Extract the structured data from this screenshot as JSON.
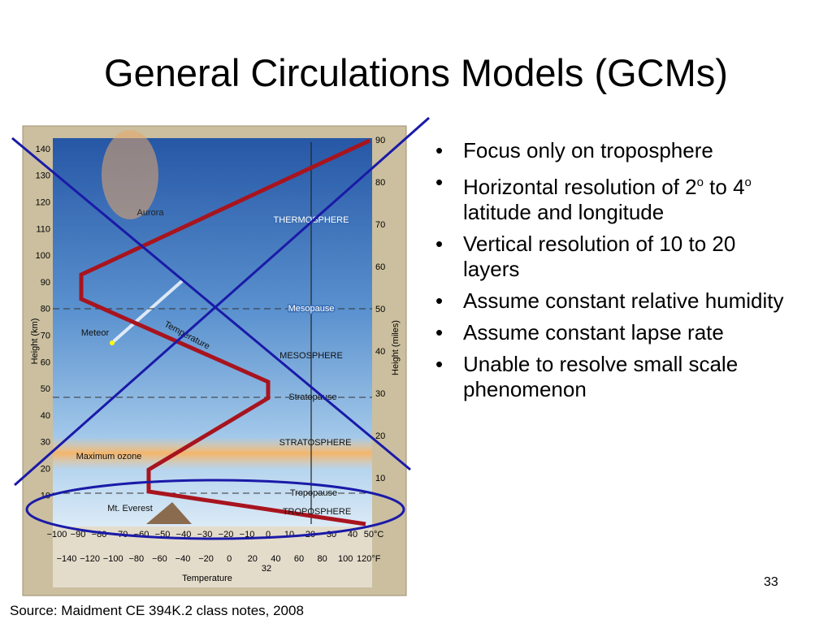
{
  "slide": {
    "title": "General Circulations Models (GCMs)",
    "figure": {
      "km_ticks": [
        "140",
        "130",
        "120",
        "110",
        "100",
        "90",
        "80",
        "70",
        "60",
        "50",
        "40",
        "30",
        "20",
        "10"
      ],
      "mile_ticks": [
        "90",
        "80",
        "70",
        "60",
        "50",
        "40",
        "30",
        "20",
        "10"
      ],
      "celsius_ticks": [
        "−100",
        "−90",
        "−80",
        "−70",
        "−60",
        "−50",
        "−40",
        "−30",
        "−20",
        "−10",
        "0",
        "10",
        "20",
        "30",
        "40",
        "50°C"
      ],
      "fahrenheit_ticks": [
        "−140",
        "−120",
        "−100",
        "−80",
        "−60",
        "−40",
        "−20",
        "0",
        "20",
        "40",
        "60",
        "80",
        "100",
        "120°F"
      ],
      "freezing_label": "32",
      "x_axis_label": "Temperature",
      "y_axis_label": "Height (km)",
      "y2_axis_label": "Height (miles)",
      "labels": {
        "aurora": "Aurora",
        "thermosphere": "THERMOSPHERE",
        "mesopause": "Mesopause",
        "meteor": "Meteor",
        "temperature": "Temperature",
        "mesosphere": "MESOSPHERE",
        "stratopause": "Stratopause",
        "stratosphere": "STRATOSPHERE",
        "ozone": "Maximum ozone",
        "tropopause": "Tropopause",
        "everest": "Mt. Everest",
        "troposphere": "TROPOSPHERE"
      }
    },
    "bullets": [
      "Focus only on troposphere",
      [
        "Horizontal resolution of 2",
        "o",
        " to 4",
        "o",
        " latitude and longitude"
      ],
      "Vertical resolution of 10 to 20 layers",
      "Assume constant relative humidity",
      "Assume constant lapse rate",
      "Unable to resolve small scale phenomenon"
    ],
    "page_number": "33",
    "source": "Source: Maidment CE 394K.2 class notes, 2008"
  }
}
